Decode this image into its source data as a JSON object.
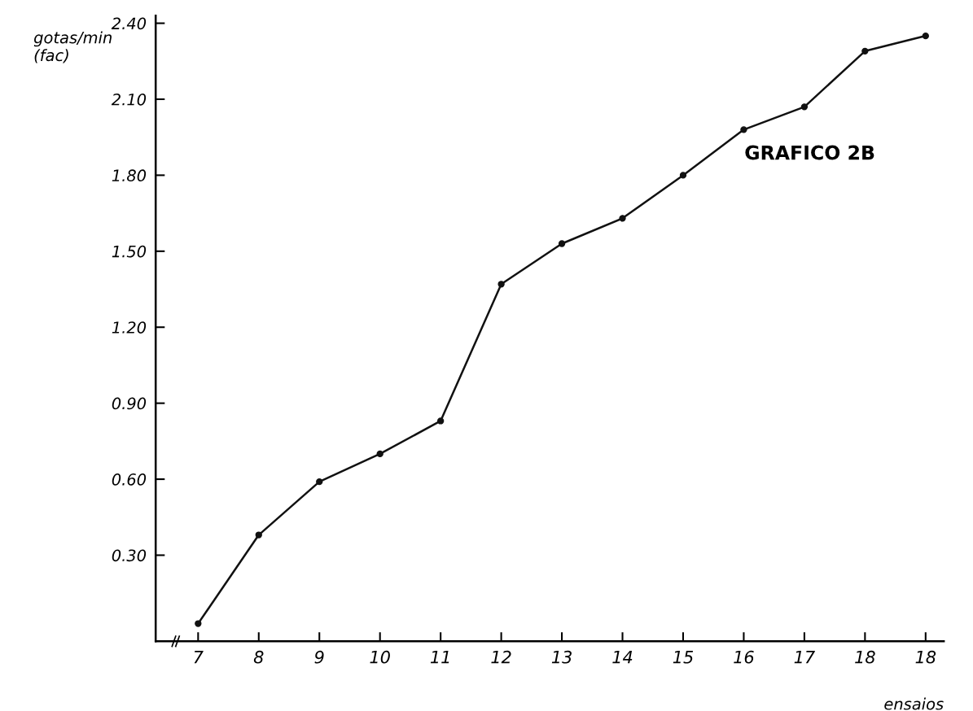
{
  "chart_data": {
    "type": "line",
    "categories": [
      "7",
      "8",
      "9",
      "10",
      "11",
      "12",
      "13",
      "14",
      "15",
      "16",
      "17",
      "18",
      "18"
    ],
    "series": [
      {
        "color": "#111111",
        "values": [
          0.03,
          0.38,
          0.59,
          0.7,
          0.83,
          1.37,
          1.53,
          1.63,
          1.8,
          1.98,
          2.07,
          2.29,
          2.35
        ]
      }
    ],
    "ylabel": "gotas/min\n(fac)",
    "xlabel": "ensaios",
    "annotations": [
      "GRAFICO 2B"
    ],
    "ylim": [
      -0.04,
      2.43
    ],
    "yticks": [
      {
        "value": 0.3,
        "label": "0.30"
      },
      {
        "value": 0.6,
        "label": "0.60"
      },
      {
        "value": 0.9,
        "label": "0.90"
      },
      {
        "value": 1.2,
        "label": "1.20"
      },
      {
        "value": 1.5,
        "label": "1.50"
      },
      {
        "value": 1.8,
        "label": "1.80"
      },
      {
        "value": 2.1,
        "label": "2.10"
      },
      {
        "value": 2.4,
        "label": "2.40"
      }
    ],
    "marker": "circle",
    "line_style": "solid",
    "grid": false,
    "legend": false
  }
}
